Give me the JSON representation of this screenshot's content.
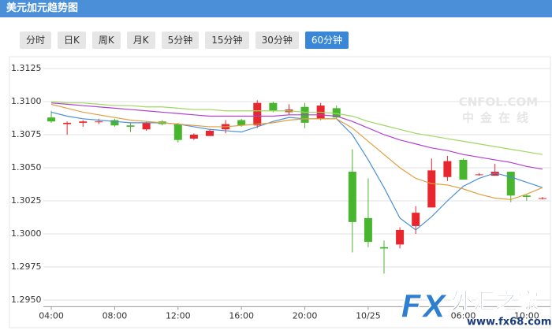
{
  "header": {
    "title": "美元加元趋势图"
  },
  "tabs": [
    "分时",
    "日K",
    "周K",
    "月K",
    "5分钟",
    "15分钟",
    "30分钟",
    "60分钟"
  ],
  "active_tab": 7,
  "watermarks": {
    "cnfol": "CNFOL.COM",
    "cnfol_cn": "中金在线",
    "fx": "FX",
    "fx_cn": "外汇之家",
    "fx_url": "www.fx68.com"
  },
  "chart_data": {
    "type": "candlestick",
    "categories": [
      "04:00",
      null,
      null,
      null,
      "08:00",
      null,
      null,
      null,
      "12:00",
      null,
      null,
      null,
      "16:00",
      null,
      null,
      null,
      "20:00",
      null,
      null,
      null,
      "10/25",
      null,
      null,
      null,
      null,
      null,
      "06:00",
      null,
      null,
      null,
      "10:00",
      null
    ],
    "open": [
      1.3088,
      1.3083,
      1.3084,
      1.3085,
      1.3086,
      1.3082,
      1.3079,
      1.3085,
      1.3083,
      1.3072,
      1.3074,
      1.3079,
      1.3086,
      1.3082,
      1.3099,
      1.3092,
      1.3096,
      1.3087,
      1.3095,
      1.3047,
      1.3012,
      1.299,
      1.2992,
      1.3006,
      1.302,
      1.3043,
      1.3056,
      1.3045,
      1.3044,
      1.3047,
      1.3029,
      1.3027
    ],
    "high": [
      1.3093,
      1.3085,
      1.3086,
      1.3087,
      1.3087,
      1.3084,
      1.3085,
      1.3086,
      1.3084,
      1.3076,
      1.3079,
      1.3086,
      1.3087,
      1.3101,
      1.31,
      1.3098,
      1.3099,
      1.3099,
      1.3097,
      1.3064,
      1.3042,
      1.2995,
      1.3005,
      1.3021,
      1.3057,
      1.3059,
      1.3057,
      1.3046,
      1.3053,
      1.3047,
      1.303,
      1.3028
    ],
    "low": [
      1.3084,
      1.3075,
      1.3081,
      1.3083,
      1.3081,
      1.3077,
      1.3078,
      1.3082,
      1.3069,
      1.3071,
      1.3074,
      1.3076,
      1.3081,
      1.308,
      1.3092,
      1.309,
      1.308,
      1.3086,
      1.3087,
      1.2986,
      1.299,
      1.297,
      1.2989,
      1.3,
      1.302,
      1.304,
      1.3041,
      1.3044,
      1.3044,
      1.3024,
      1.3025,
      1.3026
    ],
    "close": [
      1.3085,
      1.3084,
      1.3085,
      1.3085,
      1.3082,
      1.3081,
      1.3084,
      1.3083,
      1.3071,
      1.3075,
      1.3078,
      1.3083,
      1.3082,
      1.3099,
      1.3093,
      1.3094,
      1.3084,
      1.3097,
      1.3088,
      1.3009,
      1.2994,
      1.2989,
      1.3003,
      1.3016,
      1.3048,
      1.3055,
      1.3041,
      1.3045,
      1.3047,
      1.3029,
      1.3028,
      1.3027
    ],
    "up_color": "#e8262d",
    "down_color": "#48b52f",
    "lines": [
      {
        "color": "#4a8fd8",
        "values": [
          1.3092,
          1.3089,
          1.3087,
          1.3086,
          1.3085,
          1.3084,
          1.3084,
          1.3084,
          1.3083,
          1.3081,
          1.3079,
          1.3078,
          1.3077,
          1.3081,
          1.3085,
          1.3088,
          1.3087,
          1.3087,
          1.3087,
          1.3075,
          1.3056,
          1.3035,
          1.3012,
          1.3003,
          1.3013,
          1.3025,
          1.3036,
          1.3042,
          1.3046,
          1.3043,
          1.3039,
          1.3035
        ]
      },
      {
        "color": "#e0a040",
        "values": [
          1.3098,
          1.3095,
          1.3092,
          1.309,
          1.3088,
          1.3086,
          1.3085,
          1.3084,
          1.3083,
          1.3082,
          1.3081,
          1.3081,
          1.3082,
          1.3083,
          1.3084,
          1.3086,
          1.3087,
          1.3087,
          1.3087,
          1.308,
          1.307,
          1.306,
          1.305,
          1.3042,
          1.3038,
          1.3037,
          1.3034,
          1.303,
          1.3027,
          1.3026,
          1.303,
          1.3035
        ]
      },
      {
        "color": "#b040d0",
        "values": [
          1.3099,
          1.3098,
          1.3097,
          1.3096,
          1.3095,
          1.3094,
          1.3093,
          1.3092,
          1.3091,
          1.309,
          1.3089,
          1.3089,
          1.3089,
          1.3089,
          1.3089,
          1.309,
          1.309,
          1.309,
          1.3089,
          1.3085,
          1.308,
          1.3075,
          1.3071,
          1.3068,
          1.3065,
          1.3063,
          1.306,
          1.3058,
          1.3056,
          1.3054,
          1.3051,
          1.3049
        ]
      },
      {
        "color": "#9ed860",
        "values": [
          1.31,
          1.3099,
          1.3099,
          1.3098,
          1.3097,
          1.3097,
          1.3096,
          1.3096,
          1.3095,
          1.3094,
          1.3094,
          1.3093,
          1.3093,
          1.3093,
          1.3093,
          1.3093,
          1.3092,
          1.3092,
          1.3091,
          1.3089,
          1.3085,
          1.3082,
          1.3079,
          1.3076,
          1.3074,
          1.3072,
          1.307,
          1.3068,
          1.3066,
          1.3064,
          1.3062,
          1.306
        ]
      }
    ],
    "ylim": [
      1.2945,
      1.313
    ],
    "yticks": [
      1.3125,
      {
        "value": 1.31,
        "label": "1.3100"
      },
      1.3075,
      {
        "value": 1.305,
        "label": "1.3050"
      },
      1.3025,
      {
        "value": 1.3,
        "label": "1.3000"
      },
      1.2975,
      {
        "value": 1.295,
        "label": "1.2950"
      }
    ],
    "grid": true
  }
}
